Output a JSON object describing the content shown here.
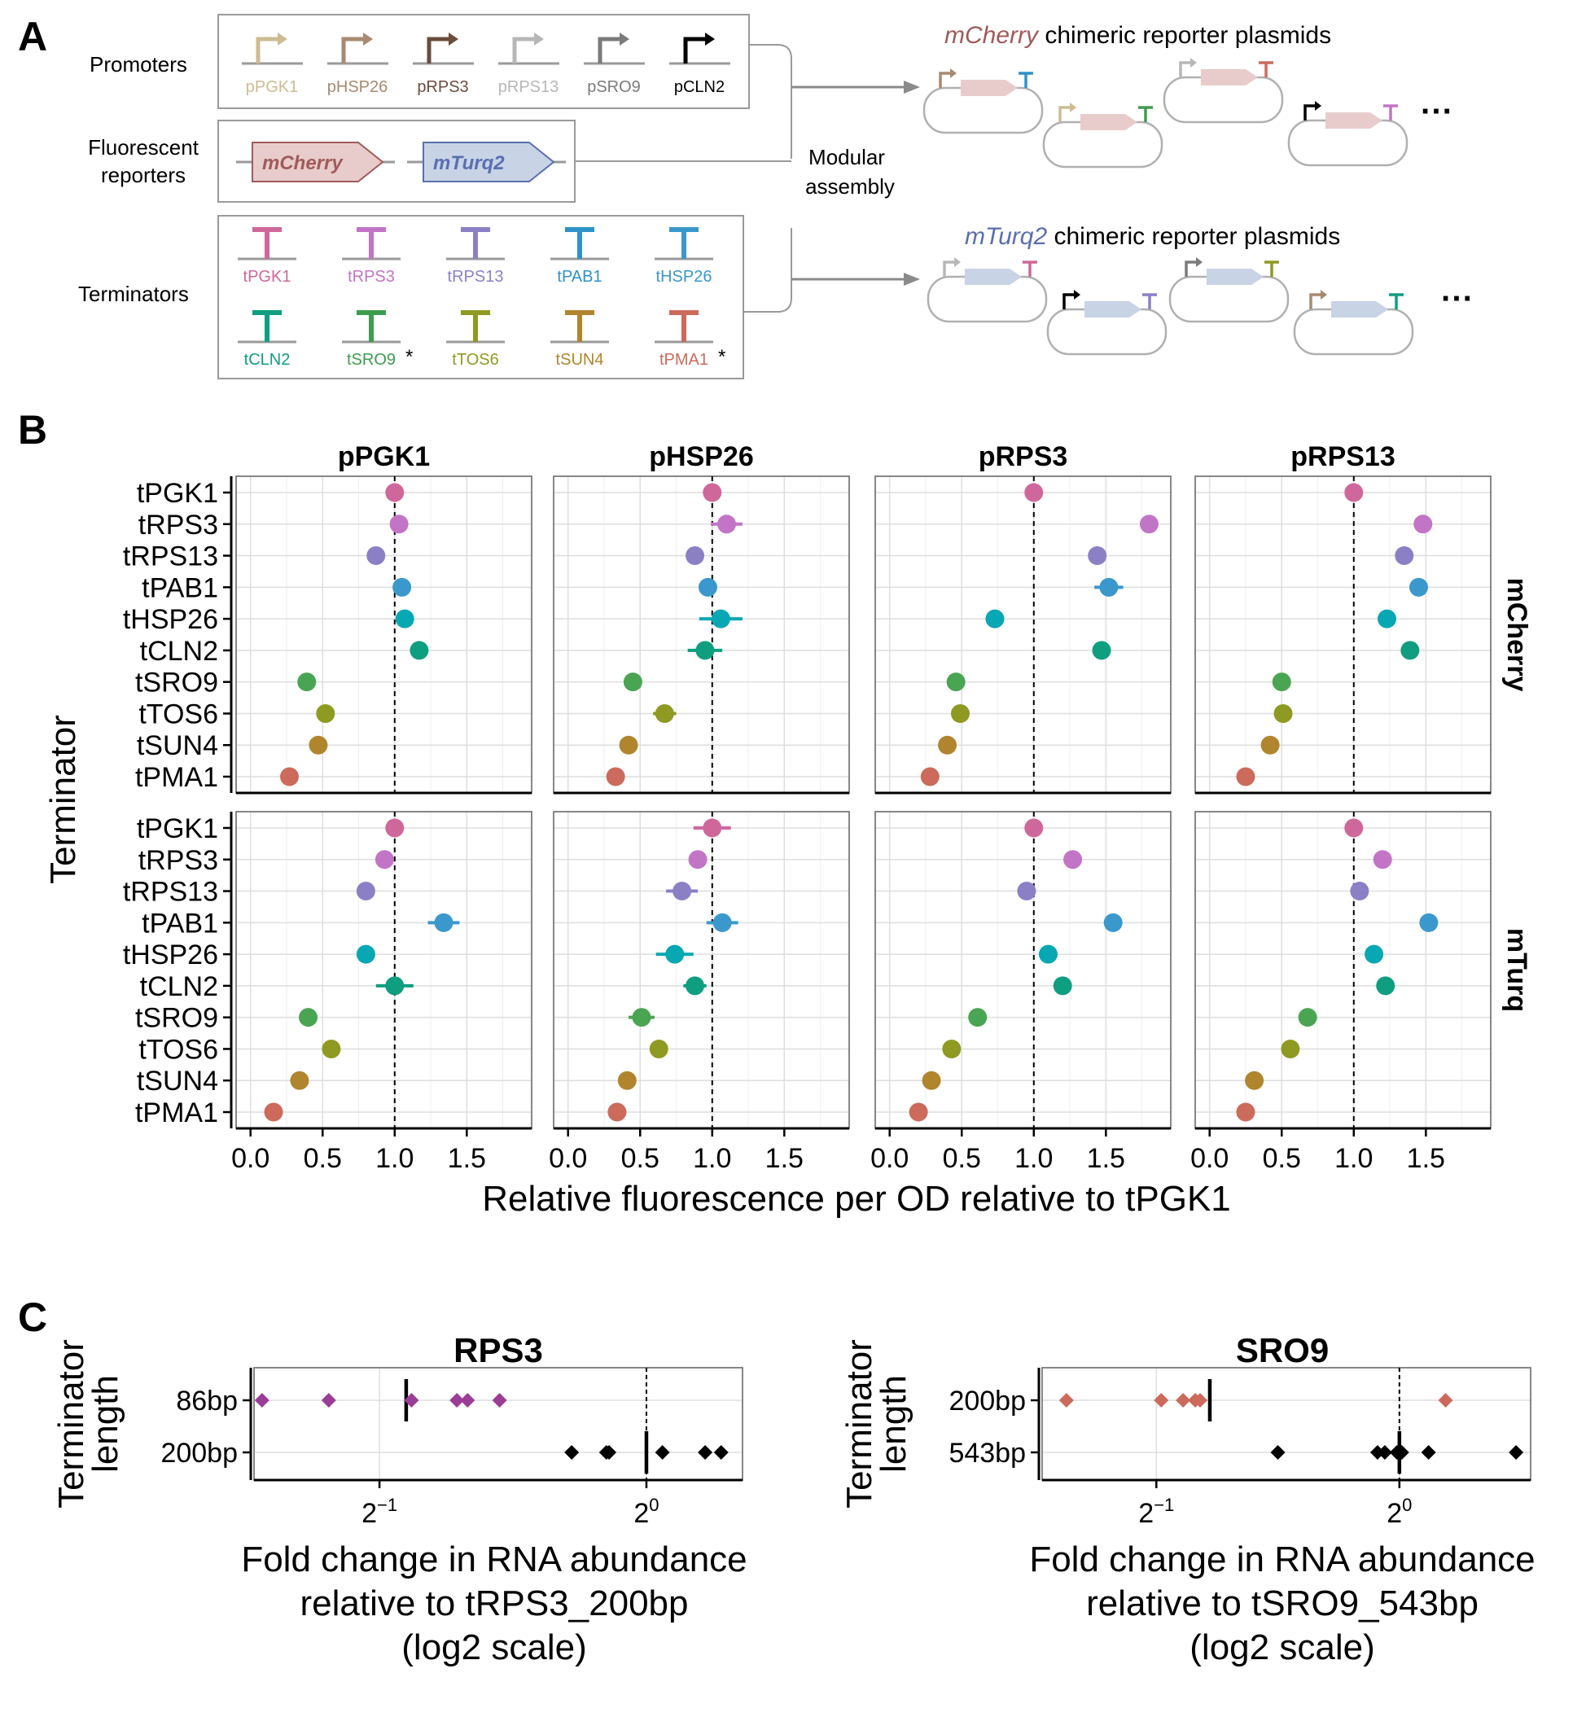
{
  "panels": {
    "a": "A",
    "b": "B",
    "c": "C"
  },
  "panel_a": {
    "promoters_label": "Promoters",
    "reporters_label": [
      "Fluorescent",
      "reporters"
    ],
    "terminators_label": "Terminators",
    "promoters": [
      {
        "name": "pPGK1",
        "color": "#cdbb92"
      },
      {
        "name": "pHSP26",
        "color": "#a88a70"
      },
      {
        "name": "pRPS3",
        "color": "#6b4c3d"
      },
      {
        "name": "pRPS13",
        "color": "#b7b7b7"
      },
      {
        "name": "pSRO9",
        "color": "#7b7b7b"
      },
      {
        "name": "pCLN2",
        "color": "#000000"
      }
    ],
    "reporters": [
      {
        "name": "mCherry",
        "fill": "#e8cccc",
        "stroke": "#a05a5a",
        "text": "#a05a5a"
      },
      {
        "name": "mTurq2",
        "fill": "#c8d3e6",
        "stroke": "#5a6fb0",
        "text": "#5a6fb0"
      }
    ],
    "terminators_row1": [
      {
        "name": "tPGK1",
        "color": "#d0679a"
      },
      {
        "name": "tRPS3",
        "color": "#c275c6"
      },
      {
        "name": "tRPS13",
        "color": "#8b80c6"
      },
      {
        "name": "tPAB1",
        "color": "#2f92c8"
      },
      {
        "name": "tHSP26",
        "color": "#3a98cc"
      }
    ],
    "terminators_row2": [
      {
        "name": "tCLN2",
        "color": "#0f9e80",
        "star": ""
      },
      {
        "name": "tSRO9",
        "color": "#3e9c4e",
        "star": "*"
      },
      {
        "name": "tTOS6",
        "color": "#8f9a22",
        "star": ""
      },
      {
        "name": "tSUN4",
        "color": "#b0852e",
        "star": ""
      },
      {
        "name": "tPMA1",
        "color": "#cc6a5c",
        "star": "*"
      }
    ],
    "assembly_label": [
      "Modular",
      "assembly"
    ],
    "mcherry_title_italic": "mCherry",
    "mcherry_title_rest": " chimeric reporter plasmids",
    "mturq_title_italic": "mTurq2",
    "mturq_title_rest": " chimeric reporter plasmids",
    "ellipsis": "···"
  },
  "chart_data": [
    {
      "type": "scatter",
      "panel": "B",
      "ylabel": "Terminator",
      "xlabel": "Relative fluorescence per OD relative to tPGK1",
      "xlim": [
        -0.1,
        1.95
      ],
      "xticks": [
        "0.0",
        "0.5",
        "1.0",
        "1.5"
      ],
      "reference_line_x": 1.0,
      "categories": [
        "tPGK1",
        "tRPS3",
        "tRPS13",
        "tPAB1",
        "tHSP26",
        "tCLN2",
        "tSRO9",
        "tTOS6",
        "tSUN4",
        "tPMA1"
      ],
      "colors": [
        "#d0679a",
        "#c275c6",
        "#8b80c6",
        "#3a98cc",
        "#07a7b3",
        "#0f9e80",
        "#4aa553",
        "#8f9a22",
        "#b0852e",
        "#cc6a5c"
      ],
      "columns": [
        "pPGK1",
        "pHSP26",
        "pRPS3",
        "pRPS13"
      ],
      "rows": [
        "mCherry",
        "mTurq"
      ],
      "series": [
        {
          "reporter": "mCherry",
          "promoter": "pPGK1",
          "values": [
            1.0,
            1.03,
            0.87,
            1.05,
            1.07,
            1.17,
            0.39,
            0.52,
            0.47,
            0.27
          ],
          "err": [
            0,
            0.02,
            0.02,
            0.02,
            0.03,
            0.03,
            0.02,
            0.02,
            0.02,
            0.02
          ]
        },
        {
          "reporter": "mCherry",
          "promoter": "pHSP26",
          "values": [
            1.0,
            1.1,
            0.88,
            0.97,
            1.06,
            0.95,
            0.45,
            0.67,
            0.42,
            0.33
          ],
          "err": [
            0.05,
            0.11,
            0.06,
            0.06,
            0.15,
            0.12,
            0.03,
            0.08,
            0.03,
            0.02
          ]
        },
        {
          "reporter": "mCherry",
          "promoter": "pRPS3",
          "values": [
            1.0,
            1.8,
            1.44,
            1.52,
            0.73,
            1.47,
            0.46,
            0.49,
            0.4,
            0.28
          ],
          "err": [
            0,
            0.02,
            0.02,
            0.1,
            0.02,
            0.03,
            0.02,
            0.02,
            0.02,
            0.02
          ]
        },
        {
          "reporter": "mCherry",
          "promoter": "pRPS13",
          "values": [
            1.0,
            1.48,
            1.35,
            1.45,
            1.23,
            1.39,
            0.5,
            0.51,
            0.42,
            0.25
          ],
          "err": [
            0,
            0.05,
            0.02,
            0.02,
            0.02,
            0.02,
            0.02,
            0.02,
            0.02,
            0.02
          ]
        },
        {
          "reporter": "mTurq",
          "promoter": "pPGK1",
          "values": [
            1.0,
            0.93,
            0.8,
            1.34,
            0.8,
            1.0,
            0.4,
            0.56,
            0.34,
            0.16
          ],
          "err": [
            0,
            0.03,
            0.02,
            0.11,
            0.02,
            0.13,
            0.02,
            0.02,
            0.02,
            0.02
          ]
        },
        {
          "reporter": "mTurq",
          "promoter": "pHSP26",
          "values": [
            1.0,
            0.9,
            0.79,
            1.07,
            0.74,
            0.88,
            0.51,
            0.63,
            0.41,
            0.34
          ],
          "err": [
            0.13,
            0.03,
            0.11,
            0.11,
            0.13,
            0.08,
            0.09,
            0.06,
            0.03,
            0.03
          ]
        },
        {
          "reporter": "mTurq",
          "promoter": "pRPS3",
          "values": [
            1.0,
            1.27,
            0.95,
            1.55,
            1.1,
            1.2,
            0.61,
            0.43,
            0.29,
            0.2
          ],
          "err": [
            0,
            0.02,
            0.02,
            0.02,
            0.02,
            0.02,
            0.02,
            0.02,
            0.02,
            0.02
          ]
        },
        {
          "reporter": "mTurq",
          "promoter": "pRPS13",
          "values": [
            1.0,
            1.2,
            1.04,
            1.52,
            1.14,
            1.22,
            0.68,
            0.56,
            0.31,
            0.25
          ],
          "err": [
            0,
            0.02,
            0.02,
            0.02,
            0.02,
            0.02,
            0.02,
            0.02,
            0.02,
            0.02
          ]
        }
      ]
    },
    {
      "type": "scatter",
      "panel": "C",
      "title": "RPS3",
      "ylabel": [
        "Terminator",
        "length"
      ],
      "xlabel": [
        "Fold change in RNA abundance",
        "relative to tRPS3_200bp",
        "(log2 scale)"
      ],
      "x_scale": "log2",
      "xlim_log2": [
        -1.47,
        0.36
      ],
      "xticks_log2": [
        -1,
        0
      ],
      "categories": [
        "86bp",
        "200bp"
      ],
      "colors": [
        "#9b3d97",
        "#000000"
      ],
      "points_log2": [
        [
          -1.44,
          -1.19,
          -0.88,
          -0.71,
          -0.67,
          -0.55
        ],
        [
          -0.28,
          -0.15,
          -0.14,
          0.06,
          0.22,
          0.28
        ]
      ],
      "means_log2": [
        -0.9,
        0.0
      ]
    },
    {
      "type": "scatter",
      "panel": "C",
      "title": "SRO9",
      "ylabel": [
        "Terminator",
        "length"
      ],
      "xlabel": [
        "Fold change in RNA abundance",
        "relative to tSRO9_543bp",
        "(log2 scale)"
      ],
      "x_scale": "log2",
      "xlim_log2": [
        -1.47,
        0.54
      ],
      "xticks_log2": [
        -1,
        0
      ],
      "categories": [
        "200bp",
        "543bp"
      ],
      "colors": [
        "#cc6a5c",
        "#000000"
      ],
      "points_log2": [
        [
          -1.37,
          -0.98,
          -0.89,
          -0.84,
          -0.82,
          0.19
        ],
        [
          -0.5,
          -0.09,
          -0.06,
          -0.01,
          0.01,
          0.12,
          0.48
        ]
      ],
      "means_log2": [
        -0.78,
        0.0
      ]
    }
  ]
}
